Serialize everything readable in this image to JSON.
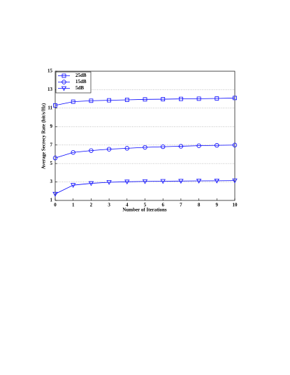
{
  "chart_data": {
    "type": "line",
    "x_label": "Number of Iterations",
    "y_label": "Average Secrecy Rate (bit/s/Hz)",
    "x": [
      0,
      1,
      2,
      3,
      4,
      5,
      6,
      7,
      8,
      9,
      10
    ],
    "xlim": [
      0,
      10
    ],
    "xticks": [
      0,
      1,
      2,
      3,
      4,
      5,
      6,
      7,
      8,
      9,
      10
    ],
    "ylim": [
      1,
      15
    ],
    "yticks": [
      1,
      3,
      5,
      7,
      9,
      11,
      13,
      15
    ],
    "grid": true,
    "legend": "top-left",
    "series": [
      {
        "name": "25dB",
        "color": "#0000ff",
        "marker": "square",
        "values": [
          11.3,
          11.7,
          11.8,
          11.85,
          11.9,
          11.95,
          11.97,
          12.0,
          12.02,
          12.05,
          12.1
        ]
      },
      {
        "name": "15dB",
        "color": "#0000ff",
        "marker": "circle",
        "values": [
          5.6,
          6.2,
          6.4,
          6.55,
          6.65,
          6.75,
          6.82,
          6.87,
          6.93,
          6.97,
          7.0
        ]
      },
      {
        "name": "5dB",
        "color": "#0000ff",
        "marker": "triangle-down",
        "values": [
          1.7,
          2.65,
          2.85,
          2.97,
          3.02,
          3.06,
          3.08,
          3.1,
          3.12,
          3.13,
          3.15
        ]
      }
    ]
  }
}
